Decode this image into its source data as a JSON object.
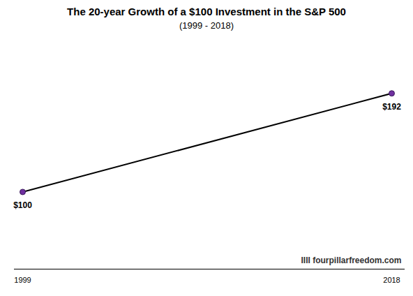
{
  "chart_data": {
    "type": "line",
    "title": "The 20-year Growth of a $100 Investment in the S&P 500",
    "subtitle": "(1999 - 2018)",
    "x": [
      1999,
      2018
    ],
    "values": [
      100,
      192
    ],
    "value_labels": [
      "$100",
      "$192"
    ],
    "data_labels": true,
    "color": "#000000",
    "marker": "circle",
    "xlim": [
      1999,
      2018
    ],
    "xticks": [
      1999,
      2018
    ],
    "ylim": [
      28,
      228
    ],
    "tick_labels": "x",
    "grid": false,
    "annotations": [
      "IIII fourpillarfreedom.com"
    ]
  }
}
